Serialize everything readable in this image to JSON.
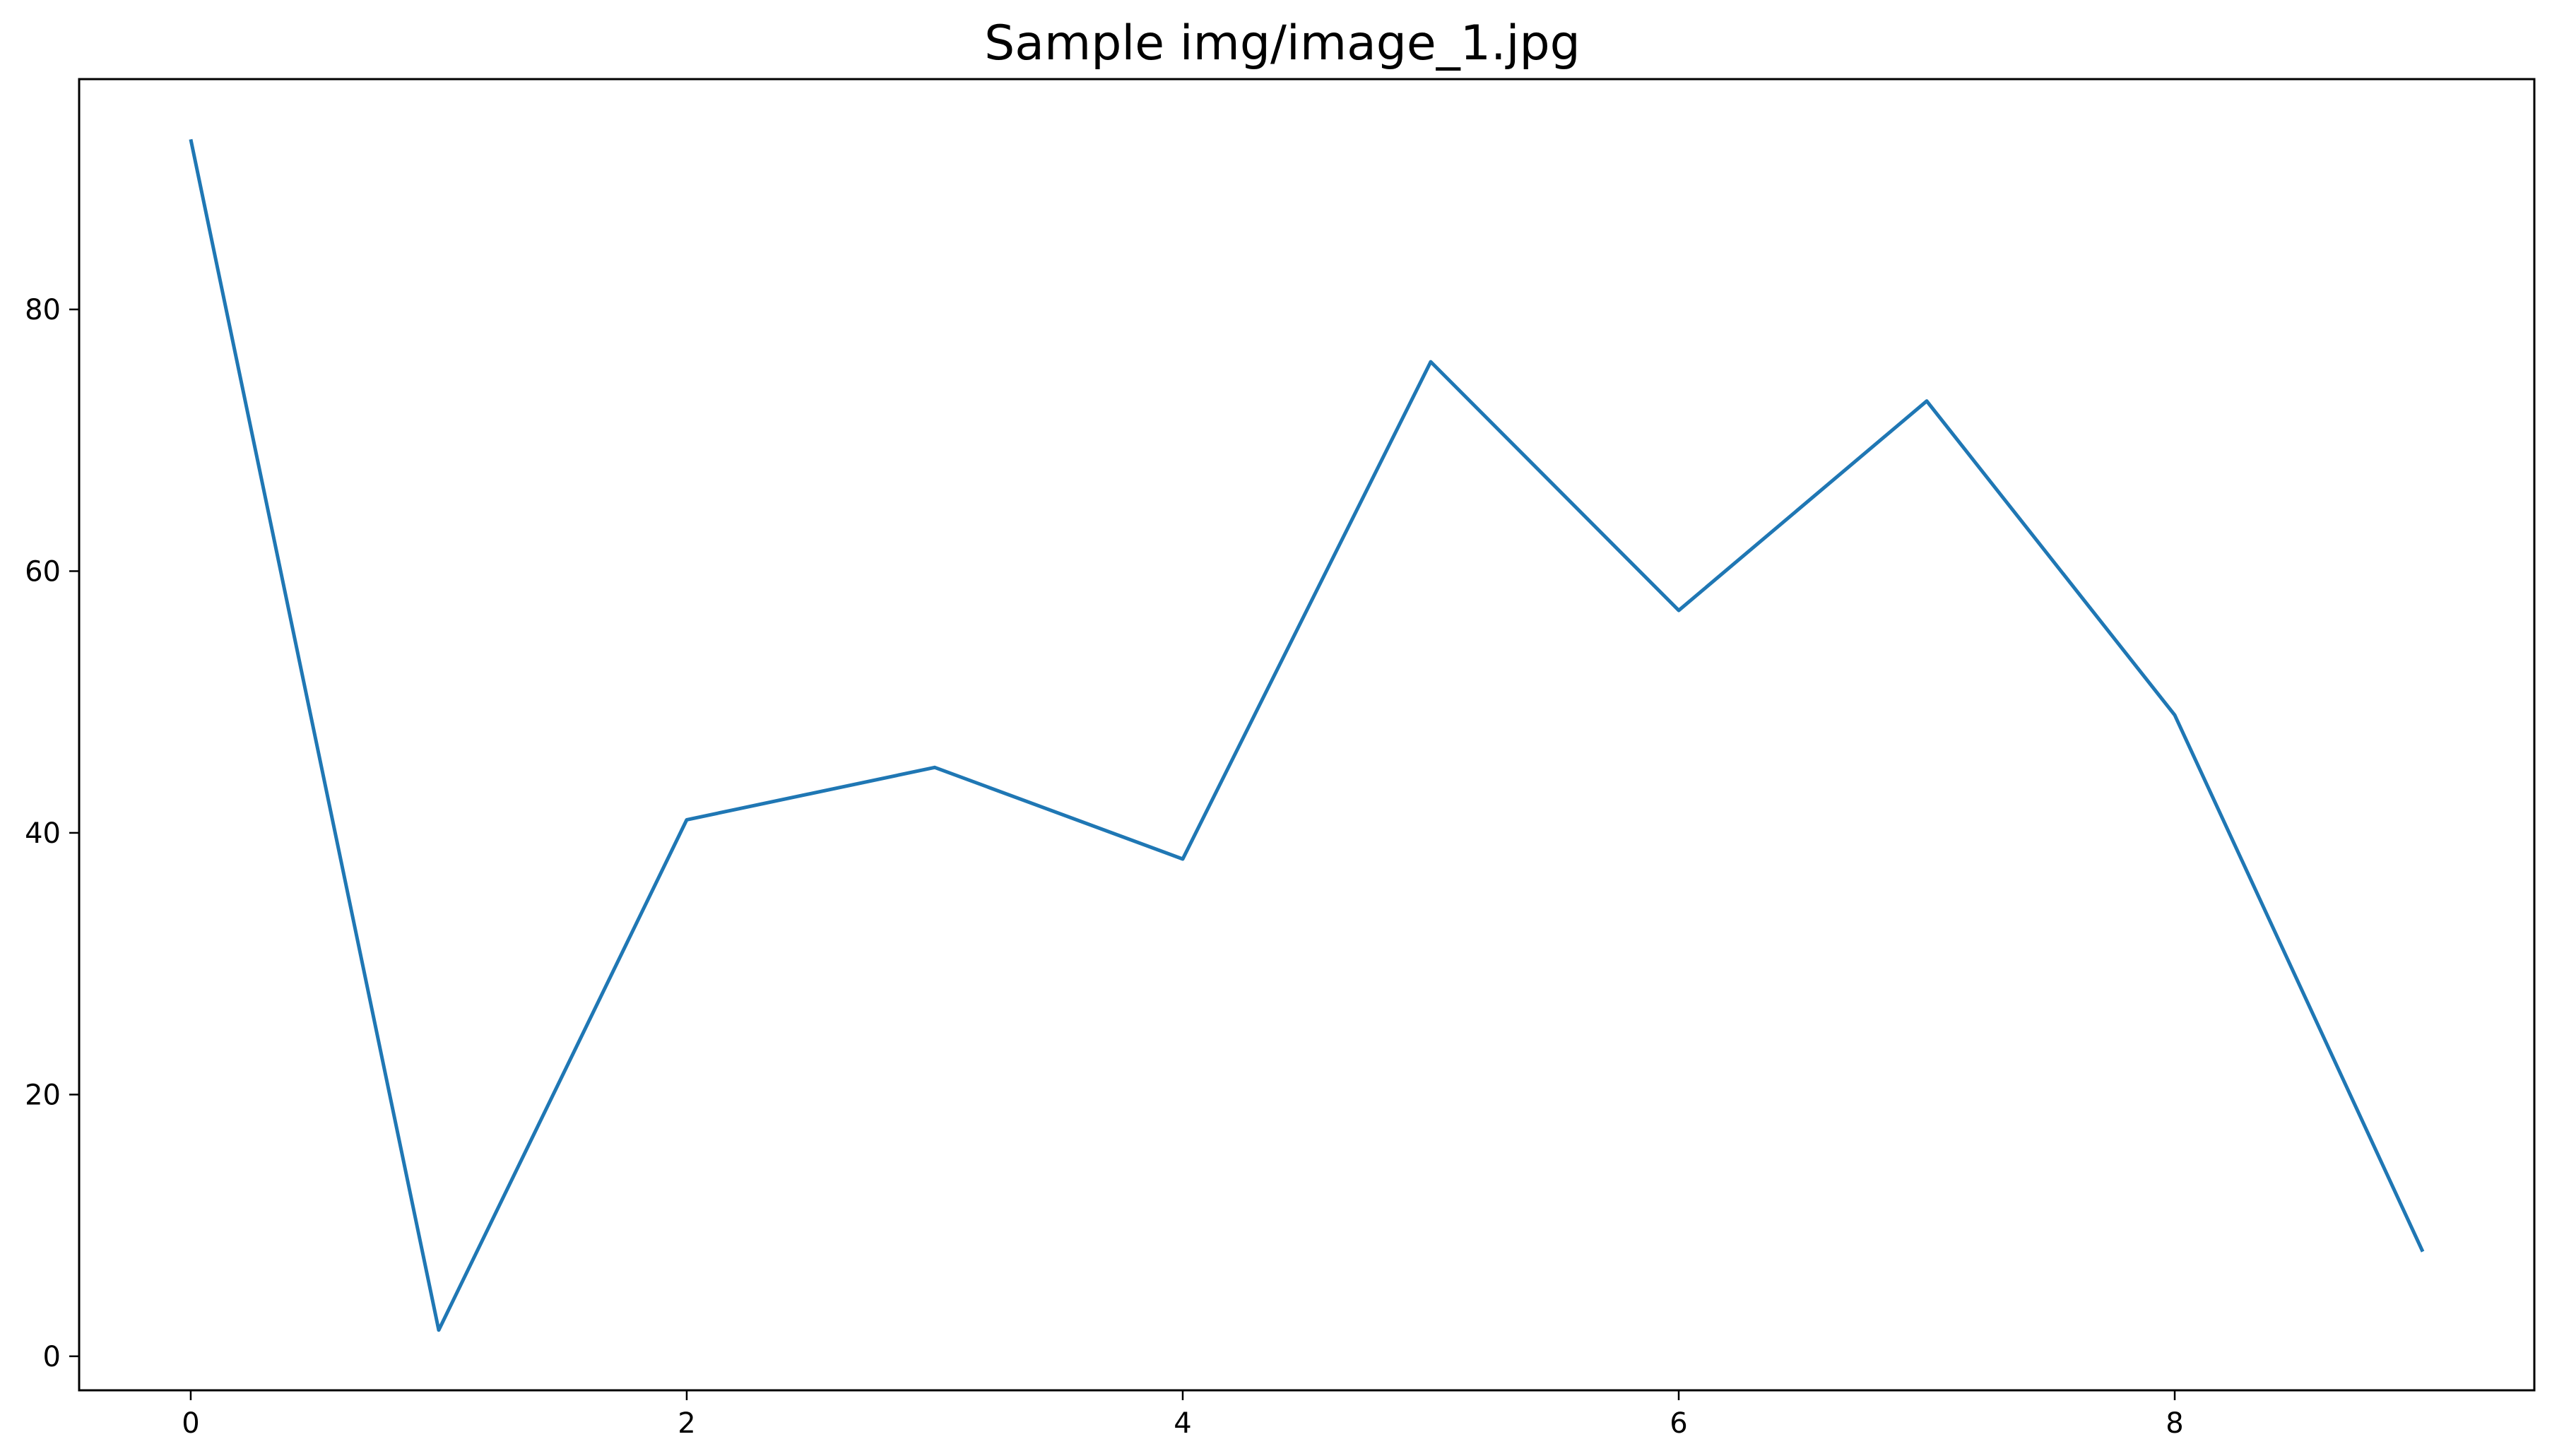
{
  "chart_data": {
    "type": "line",
    "title": "Sample img/image_1.jpg",
    "xlabel": "",
    "ylabel": "",
    "x": [
      0,
      1,
      2,
      3,
      4,
      5,
      6,
      7,
      8,
      9
    ],
    "series": [
      {
        "values": [
          93,
          2,
          41,
          45,
          38,
          76,
          57,
          73,
          49,
          8
        ],
        "color": "#1f77b4"
      }
    ],
    "xlim": [
      -0.45,
      9.45
    ],
    "ylim": [
      -2.6,
      97.6
    ],
    "xticks": [
      0,
      2,
      4,
      6,
      8
    ],
    "yticks": [
      0,
      20,
      40,
      60,
      80
    ],
    "grid": false,
    "legend": "none"
  }
}
